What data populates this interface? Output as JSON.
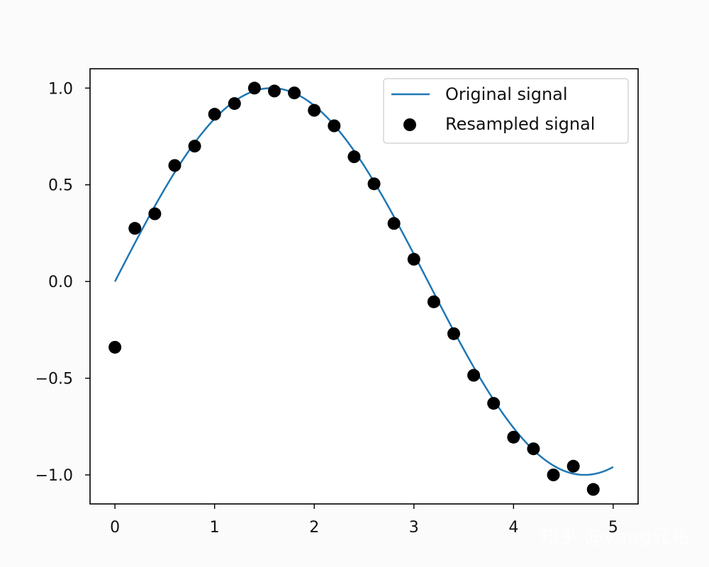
{
  "chart_data": {
    "type": "line",
    "title": "",
    "xlabel": "",
    "ylabel": "",
    "xlim": [
      -0.25,
      5.25
    ],
    "ylim": [
      -1.15,
      1.1
    ],
    "xticks": [
      0,
      1,
      2,
      3,
      4,
      5
    ],
    "xtick_labels": [
      "0",
      "1",
      "2",
      "3",
      "4",
      "5"
    ],
    "yticks": [
      1.0,
      0.5,
      0.0,
      -0.5,
      -1.0
    ],
    "ytick_labels": [
      "1.0",
      "0.5",
      "0.0",
      "−0.5",
      "−1.0"
    ],
    "grid": false,
    "legend_position": "upper-right",
    "series": [
      {
        "name": "Original signal",
        "kind": "line",
        "color": "#1f77b4",
        "function": "sin(x)",
        "x_range": [
          0,
          5
        ]
      },
      {
        "name": "Resampled signal",
        "kind": "scatter",
        "color": "#000000",
        "x": [
          0.0,
          0.2,
          0.4,
          0.6,
          0.8,
          1.0,
          1.2,
          1.4,
          1.6,
          1.8,
          2.0,
          2.2,
          2.4,
          2.6,
          2.8,
          3.0,
          3.2,
          3.4,
          3.6,
          3.8,
          4.0,
          4.2,
          4.4,
          4.6,
          4.8
        ],
        "y": [
          -0.34,
          0.275,
          0.35,
          0.6,
          0.7,
          0.865,
          0.92,
          1.0,
          0.985,
          0.975,
          0.885,
          0.805,
          0.645,
          0.505,
          0.3,
          0.115,
          -0.105,
          -0.27,
          -0.485,
          -0.63,
          -0.805,
          -0.865,
          -1.0,
          -0.955,
          -1.075
        ]
      }
    ]
  },
  "watermark": "知乎 @yang元祐"
}
